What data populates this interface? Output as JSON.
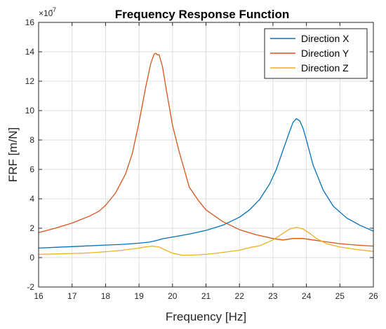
{
  "chart_data": {
    "type": "line",
    "title": "Frequency Response Function",
    "xlabel": "Frequency [Hz]",
    "ylabel": "FRF [m/N]",
    "xlim": [
      16,
      26
    ],
    "ylim": [
      -2,
      16
    ],
    "y_exponent": "×10",
    "y_exponent_power": "-7",
    "xticks": [
      16,
      17,
      18,
      19,
      20,
      21,
      22,
      23,
      24,
      25,
      26
    ],
    "yticks": [
      -2,
      0,
      2,
      4,
      6,
      8,
      10,
      12,
      14,
      16
    ],
    "xtick_labels": [
      "16",
      "17",
      "18",
      "19",
      "20",
      "21",
      "22",
      "23",
      "24",
      "25",
      "26"
    ],
    "ytick_labels": [
      "-2",
      "0",
      "2",
      "4",
      "6",
      "8",
      "10",
      "12",
      "14",
      "16"
    ],
    "grid": true,
    "legend_position": "top-right",
    "series": [
      {
        "name": "Direction X",
        "color": "#0072BD",
        "x": [
          16,
          16.5,
          17,
          17.5,
          18,
          18.5,
          19,
          19.3,
          19.5,
          19.7,
          20,
          20.5,
          21,
          21.5,
          22,
          22.3,
          22.6,
          22.9,
          23.1,
          23.3,
          23.5,
          23.6,
          23.7,
          23.8,
          23.9,
          24.0,
          24.2,
          24.5,
          24.8,
          25.2,
          25.6,
          26
        ],
        "y": [
          0.65,
          0.7,
          0.75,
          0.8,
          0.85,
          0.9,
          0.98,
          1.05,
          1.15,
          1.28,
          1.4,
          1.6,
          1.85,
          2.2,
          2.75,
          3.25,
          3.95,
          5.0,
          6.0,
          7.3,
          8.6,
          9.2,
          9.45,
          9.3,
          8.8,
          8.0,
          6.3,
          4.6,
          3.5,
          2.7,
          2.2,
          1.8
        ]
      },
      {
        "name": "Direction Y",
        "color": "#D95319",
        "x": [
          16,
          16.5,
          17,
          17.5,
          17.8,
          18,
          18.3,
          18.6,
          18.8,
          19.0,
          19.2,
          19.35,
          19.45,
          19.5,
          19.55,
          19.6,
          19.7,
          19.8,
          20.0,
          20.2,
          20.35,
          20.5,
          20.8,
          21.0,
          21.5,
          22.0,
          22.5,
          23.0,
          23.3,
          23.6,
          23.9,
          24.2,
          24.5,
          25.0,
          25.5,
          26
        ],
        "y": [
          1.7,
          2.0,
          2.35,
          2.8,
          3.15,
          3.55,
          4.4,
          5.7,
          7.1,
          9.2,
          11.6,
          13.2,
          13.85,
          13.9,
          13.8,
          13.8,
          13.0,
          11.6,
          9.0,
          7.2,
          6.0,
          4.8,
          3.8,
          3.25,
          2.45,
          1.9,
          1.55,
          1.3,
          1.2,
          1.3,
          1.3,
          1.2,
          1.1,
          0.95,
          0.85,
          0.78
        ]
      },
      {
        "name": "Direction Z",
        "color": "#EDB120",
        "x": [
          16,
          16.5,
          17,
          17.5,
          18,
          18.5,
          19,
          19.2,
          19.4,
          19.6,
          19.8,
          20.0,
          20.3,
          20.6,
          21.0,
          21.5,
          22.0,
          22.3,
          22.6,
          23.0,
          23.3,
          23.5,
          23.7,
          23.9,
          24.1,
          24.3,
          24.6,
          25.0,
          25.5,
          26
        ],
        "y": [
          0.22,
          0.25,
          0.28,
          0.32,
          0.4,
          0.5,
          0.65,
          0.73,
          0.78,
          0.72,
          0.5,
          0.3,
          0.16,
          0.17,
          0.22,
          0.35,
          0.5,
          0.68,
          0.8,
          1.2,
          1.65,
          1.95,
          2.05,
          1.95,
          1.65,
          1.3,
          0.95,
          0.72,
          0.55,
          0.42
        ]
      }
    ]
  }
}
